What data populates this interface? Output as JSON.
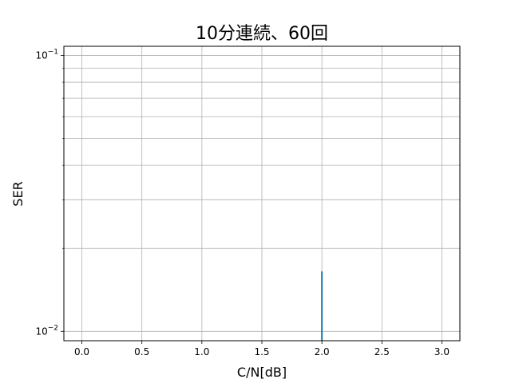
{
  "chart_data": {
    "type": "line",
    "title": "10分連続、60回",
    "xlabel": "C/N[dB]",
    "ylabel": "SER",
    "xlim": [
      -0.15,
      3.15
    ],
    "ylim": [
      0.00925,
      0.108
    ],
    "yscale": "log",
    "grid": true,
    "x_ticks": [
      0.0,
      0.5,
      1.0,
      1.5,
      2.0,
      2.5,
      3.0
    ],
    "x_tick_labels": [
      "0.0",
      "0.5",
      "1.0",
      "1.5",
      "2.0",
      "2.5",
      "3.0"
    ],
    "y_major_ticks": [
      {
        "value": 0.1,
        "base": "10",
        "exp": "−1"
      },
      {
        "value": 0.01,
        "base": "10",
        "exp": "−2"
      }
    ],
    "y_minor_ticks": [
      0.02,
      0.03,
      0.04,
      0.05,
      0.06,
      0.07,
      0.08,
      0.09
    ],
    "series": [
      {
        "color": "#1f77b4",
        "x": [
          2.0,
          2.0
        ],
        "y": [
          0.00925,
          0.0165
        ]
      }
    ]
  }
}
